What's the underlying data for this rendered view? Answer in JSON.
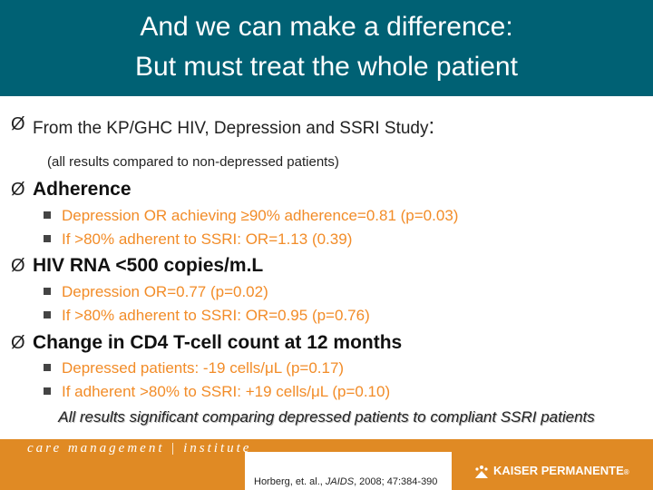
{
  "title": {
    "line1": "And we can make a difference:",
    "line2": "But must treat the whole patient"
  },
  "arrow_glyph": "Ø",
  "study": {
    "text": "From the KP/GHC HIV, Depression and SSRI Study",
    "colon": ":",
    "note": "(all results compared to non-depressed patients)"
  },
  "sections": [
    {
      "heading": "Adherence",
      "items": [
        "Depression OR achieving ≥90%  adherence=0.81 (p=0.03)",
        "If >80% adherent to SSRI:  OR=1.13 (0.39)"
      ]
    },
    {
      "heading": "HIV RNA <500 copies/m.L",
      "items": [
        "Depression OR=0.77 (p=0.02)",
        "If >80% adherent to SSRI:  OR=0.95 (p=0.76)"
      ]
    },
    {
      "heading": "Change in CD4 T-cell count at 12 months",
      "items": [
        "Depressed patients:  -19 cells/μL (p=0.17)",
        "If adherent >80% to SSRI:  +19 cells/μL (p=0.10)"
      ]
    }
  ],
  "summary": "All results significant comparing depressed patients to compliant SSRI patients",
  "footer": {
    "cmi_logo": "care management | institute",
    "citation_authors": "Horberg, et. al., ",
    "citation_journal": "JAIDS",
    "citation_rest": ", 2008; 47:384-390",
    "kp_logo": "KAISER PERMANENTE",
    "kp_logo_mark": "®"
  },
  "colors": {
    "title_bar": "#006174",
    "sub_bullet_text": "#f28c28",
    "footer_band": "#e08a24"
  }
}
